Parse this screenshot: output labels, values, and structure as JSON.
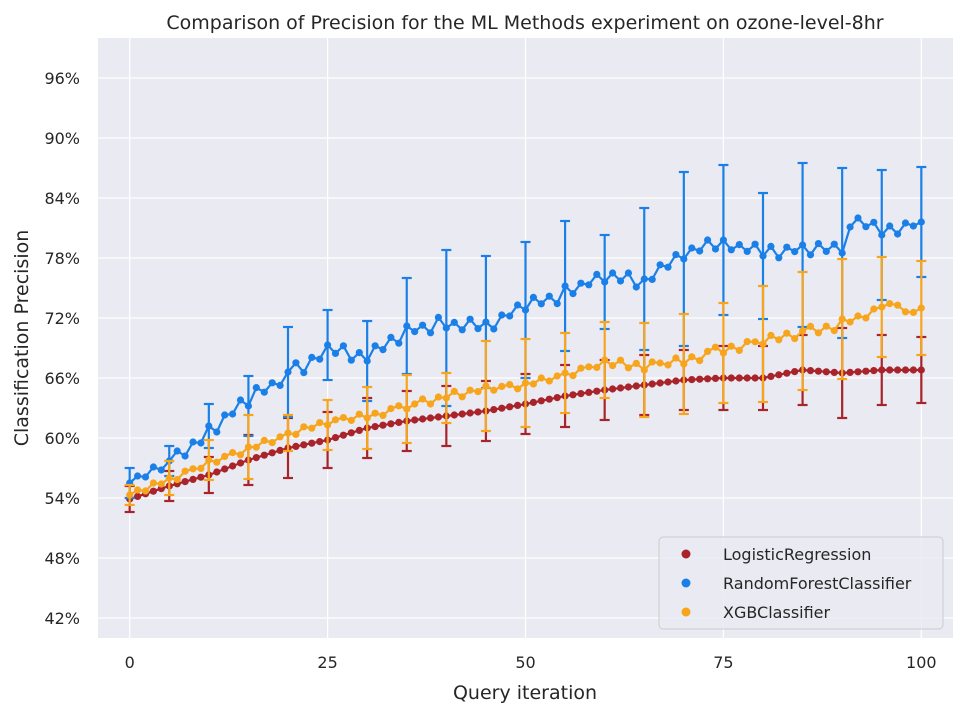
{
  "chart_data": {
    "type": "line",
    "title": "Comparison of Precision for the ML Methods experiment on ozone-level-8hr",
    "xlabel": "Query iteration",
    "ylabel": "Classification Precision",
    "xlim": [
      -4,
      104
    ],
    "ylim": [
      0.4,
      1.0
    ],
    "x_ticks": [
      0,
      25,
      50,
      75,
      100
    ],
    "x_tick_labels": [
      "0",
      "25",
      "50",
      "75",
      "100"
    ],
    "y_ticks": [
      0.42,
      0.48,
      0.54,
      0.6,
      0.66,
      0.72,
      0.78,
      0.84,
      0.9,
      0.96
    ],
    "y_tick_labels": [
      "42%",
      "48%",
      "54%",
      "60%",
      "66%",
      "72%",
      "78%",
      "84%",
      "90%",
      "96%"
    ],
    "grid": true,
    "legend_position": "bottom-right",
    "error_bar_interval": 5,
    "series": [
      {
        "name": "LogisticRegression",
        "color": "#a8232a",
        "anchors": [
          [
            0,
            0.539
          ],
          [
            5,
            0.552
          ],
          [
            10,
            0.563
          ],
          [
            15,
            0.578
          ],
          [
            20,
            0.59
          ],
          [
            25,
            0.598
          ],
          [
            30,
            0.61
          ],
          [
            35,
            0.617
          ],
          [
            40,
            0.622
          ],
          [
            45,
            0.627
          ],
          [
            50,
            0.634
          ],
          [
            55,
            0.642
          ],
          [
            60,
            0.648
          ],
          [
            65,
            0.653
          ],
          [
            70,
            0.658
          ],
          [
            75,
            0.66
          ],
          [
            80,
            0.66
          ],
          [
            85,
            0.668
          ],
          [
            90,
            0.665
          ],
          [
            95,
            0.668
          ],
          [
            100,
            0.668
          ]
        ],
        "error": [
          [
            0,
            0.013
          ],
          [
            5,
            0.015
          ],
          [
            10,
            0.018
          ],
          [
            15,
            0.025
          ],
          [
            20,
            0.03
          ],
          [
            25,
            0.028
          ],
          [
            30,
            0.03
          ],
          [
            35,
            0.03
          ],
          [
            40,
            0.03
          ],
          [
            45,
            0.03
          ],
          [
            50,
            0.03
          ],
          [
            55,
            0.031
          ],
          [
            60,
            0.03
          ],
          [
            65,
            0.03
          ],
          [
            70,
            0.03
          ],
          [
            75,
            0.032
          ],
          [
            80,
            0.032
          ],
          [
            85,
            0.035
          ],
          [
            90,
            0.045
          ],
          [
            95,
            0.035
          ],
          [
            100,
            0.033
          ]
        ]
      },
      {
        "name": "RandomForestClassifier",
        "color": "#1a80e8",
        "anchors": [
          [
            0,
            0.555
          ],
          [
            5,
            0.575
          ],
          [
            10,
            0.605
          ],
          [
            15,
            0.64
          ],
          [
            20,
            0.662
          ],
          [
            25,
            0.688
          ],
          [
            30,
            0.681
          ],
          [
            35,
            0.707
          ],
          [
            40,
            0.714
          ],
          [
            45,
            0.712
          ],
          [
            50,
            0.732
          ],
          [
            55,
            0.745
          ],
          [
            60,
            0.762
          ],
          [
            65,
            0.757
          ],
          [
            70,
            0.785
          ],
          [
            75,
            0.795
          ],
          [
            80,
            0.786
          ],
          [
            85,
            0.789
          ],
          [
            90,
            0.79
          ],
          [
            92,
            0.82
          ],
          [
            95,
            0.806
          ],
          [
            100,
            0.816
          ]
        ],
        "noise": [
          0.0,
          0.003,
          -0.002,
          0.004,
          -0.003,
          0.002,
          0.006,
          -0.005,
          0.003,
          -0.004,
          0.007,
          -0.006,
          0.004,
          -0.002,
          0.005,
          -0.008,
          0.006,
          -0.003,
          0.002,
          -0.005,
          0.004,
          0.008,
          -0.007,
          0.003,
          -0.004,
          0.005,
          -0.002,
          0.007,
          -0.006,
          0.003,
          -0.004,
          0.006,
          -0.003,
          0.004,
          -0.007,
          0.005,
          -0.002,
          0.003,
          -0.006,
          0.008,
          -0.004,
          0.002,
          -0.005,
          0.006,
          -0.003,
          0.004,
          -0.007,
          0.003,
          -0.002,
          0.005,
          -0.004,
          0.006,
          -0.003,
          0.002,
          -0.008,
          0.007,
          -0.004,
          0.003,
          -0.002,
          0.005,
          -0.006,
          0.004,
          -0.003,
          0.006,
          -0.007,
          0.002,
          -0.004,
          0.005,
          -0.003,
          0.004,
          -0.006,
          0.003,
          -0.002,
          0.007,
          -0.004,
          0.003,
          -0.005,
          0.002,
          -0.003,
          0.006,
          -0.004,
          0.005,
          -0.007,
          0.003,
          -0.002,
          0.004,
          -0.006,
          0.005,
          -0.003,
          0.004,
          -0.005,
          0.006,
          0.0,
          -0.004,
          0.005,
          -0.003,
          0.004,
          -0.006,
          0.003,
          -0.002,
          0.0
        ],
        "error": [
          [
            0,
            0.015
          ],
          [
            5,
            0.015
          ],
          [
            10,
            0.022
          ],
          [
            15,
            0.03
          ],
          [
            20,
            0.045
          ],
          [
            25,
            0.035
          ],
          [
            30,
            0.04
          ],
          [
            35,
            0.048
          ],
          [
            40,
            0.078
          ],
          [
            45,
            0.066
          ],
          [
            50,
            0.068
          ],
          [
            55,
            0.065
          ],
          [
            60,
            0.047
          ],
          [
            65,
            0.071
          ],
          [
            70,
            0.087
          ],
          [
            75,
            0.075
          ],
          [
            80,
            0.063
          ],
          [
            85,
            0.082
          ],
          [
            90,
            0.085
          ],
          [
            95,
            0.065
          ],
          [
            100,
            0.055
          ]
        ]
      },
      {
        "name": "XGBClassifier",
        "color": "#f7a51c",
        "anchors": [
          [
            0,
            0.543
          ],
          [
            5,
            0.558
          ],
          [
            10,
            0.575
          ],
          [
            15,
            0.589
          ],
          [
            20,
            0.603
          ],
          [
            25,
            0.616
          ],
          [
            30,
            0.622
          ],
          [
            35,
            0.631
          ],
          [
            40,
            0.641
          ],
          [
            45,
            0.649
          ],
          [
            50,
            0.653
          ],
          [
            55,
            0.663
          ],
          [
            60,
            0.675
          ],
          [
            65,
            0.672
          ],
          [
            70,
            0.677
          ],
          [
            75,
            0.688
          ],
          [
            80,
            0.697
          ],
          [
            85,
            0.705
          ],
          [
            90,
            0.713
          ],
          [
            95,
            0.728
          ],
          [
            100,
            0.73
          ]
        ],
        "noise": [
          0.0,
          0.002,
          -0.002,
          0.003,
          -0.001,
          0.002,
          -0.003,
          0.002,
          0.001,
          -0.002,
          0.003,
          -0.002,
          0.001,
          0.002,
          -0.003,
          0.002,
          -0.001,
          0.003,
          -0.002,
          0.001,
          0.002,
          -0.002,
          0.003,
          -0.001,
          0.002,
          -0.003,
          0.001,
          0.002,
          -0.002,
          0.003,
          -0.002,
          0.001,
          -0.003,
          0.002,
          0.003,
          -0.002,
          0.001,
          0.004,
          -0.003,
          0.002,
          -0.001,
          0.004,
          -0.003,
          0.002,
          -0.001,
          0.003,
          -0.002,
          0.001,
          0.002,
          -0.003,
          0.002,
          -0.001,
          0.003,
          -0.002,
          0.001,
          0.002,
          -0.003,
          0.002,
          0.001,
          -0.002,
          0.003,
          -0.002,
          0.004,
          -0.003,
          0.002,
          -0.004,
          0.003,
          0.001,
          -0.002,
          0.004,
          -0.003,
          0.002,
          -0.004,
          0.003,
          0.005,
          -0.003,
          0.002,
          -0.004,
          0.003,
          0.001,
          -0.003,
          0.004,
          -0.002,
          0.003,
          -0.004,
          0.002,
          0.005,
          -0.003,
          0.002,
          -0.004,
          0.006,
          0.0,
          0.003,
          -0.002,
          0.004,
          0.003,
          0.006,
          0.004,
          -0.003,
          -0.004,
          0.0
        ],
        "error": [
          [
            0,
            0.01
          ],
          [
            5,
            0.017
          ],
          [
            10,
            0.02
          ],
          [
            15,
            0.032
          ],
          [
            20,
            0.018
          ],
          [
            25,
            0.025
          ],
          [
            30,
            0.031
          ],
          [
            35,
            0.034
          ],
          [
            40,
            0.025
          ],
          [
            45,
            0.045
          ],
          [
            50,
            0.044
          ],
          [
            55,
            0.04
          ],
          [
            60,
            0.038
          ],
          [
            65,
            0.047
          ],
          [
            70,
            0.05
          ],
          [
            75,
            0.05
          ],
          [
            80,
            0.058
          ],
          [
            85,
            0.059
          ],
          [
            90,
            0.06
          ],
          [
            95,
            0.05
          ],
          [
            100,
            0.047
          ]
        ]
      }
    ]
  }
}
